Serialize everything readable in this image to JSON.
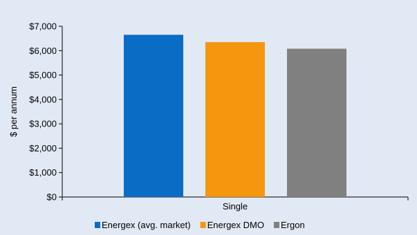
{
  "chart_data": {
    "type": "bar",
    "categories": [
      "Single"
    ],
    "series": [
      {
        "name": "Energex (avg. market)",
        "values": [
          6650
        ],
        "color": "#0a6cc4"
      },
      {
        "name": "Energex DMO",
        "values": [
          6350
        ],
        "color": "#f5960f"
      },
      {
        "name": "Ergon",
        "values": [
          6080
        ],
        "color": "#808080"
      }
    ],
    "ylabel": "$ per annum",
    "ylim": [
      0,
      7000
    ],
    "yticks": [
      "$0",
      "$1,000",
      "$2,000",
      "$3,000",
      "$4,000",
      "$5,000",
      "$6,000",
      "$7,000"
    ],
    "grid": false,
    "legend_position": "bottom",
    "background_color": "#e1e9f4"
  }
}
